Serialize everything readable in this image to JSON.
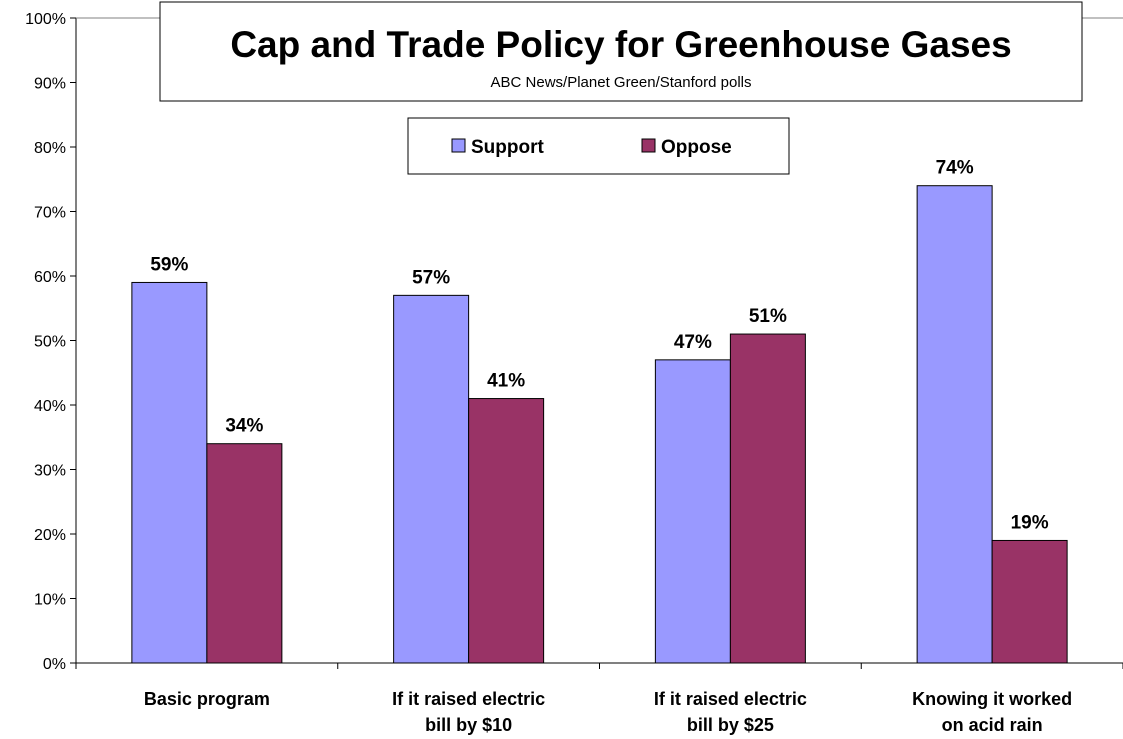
{
  "chart_data": {
    "type": "bar",
    "title": "Cap and Trade Policy for Greenhouse Gases",
    "subtitle": "ABC News/Planet Green/Stanford polls",
    "categories": [
      [
        "Basic program"
      ],
      [
        "If it raised electric",
        "bill by $10"
      ],
      [
        "If it raised electric",
        "bill by $25"
      ],
      [
        "Knowing it worked",
        "on acid rain"
      ]
    ],
    "series": [
      {
        "name": "Support",
        "color": "#9999ff",
        "values": [
          59,
          57,
          47,
          74
        ],
        "labels": [
          "59%",
          "57%",
          "47%",
          "74%"
        ]
      },
      {
        "name": "Oppose",
        "color": "#993366",
        "values": [
          34,
          41,
          51,
          19
        ],
        "labels": [
          "34%",
          "41%",
          "51%",
          "19%"
        ]
      }
    ],
    "ylim": [
      0,
      100
    ],
    "yticks": [
      "0%",
      "10%",
      "20%",
      "30%",
      "40%",
      "50%",
      "60%",
      "70%",
      "80%",
      "90%",
      "100%"
    ],
    "xlabel": "",
    "ylabel": "",
    "grid": false,
    "legend": "top-center"
  }
}
